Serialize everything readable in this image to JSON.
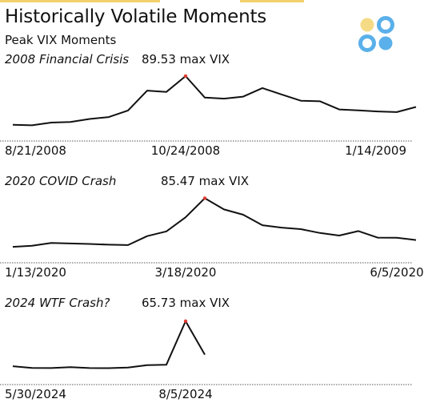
{
  "title": "Historically Volatile Moments",
  "subtitle": "Peak VIX Moments",
  "colors": {
    "line": "#111111",
    "peak": "#e03a2e",
    "axis": "#555555",
    "accent_yellow": "#f2d06b",
    "logo_blue": "#5ab0ea",
    "logo_yellow": "#f5db86"
  },
  "chart_data": [
    {
      "type": "line",
      "title": "2008 Financial Crisis",
      "peak_label": "89.53 max VIX",
      "peak_value": 89.53,
      "ticks": [
        "8/21/2008",
        "10/24/2008",
        "1/14/2009"
      ],
      "tick_positions": [
        0,
        9,
        21
      ],
      "values": [
        22.5,
        21.8,
        25.5,
        26.3,
        30.5,
        33.1,
        42.2,
        69.5,
        67.8,
        89.53,
        59.9,
        58.5,
        61.3,
        73.0,
        64.2,
        55.6,
        54.8,
        43.6,
        42.3,
        40.8,
        40.0,
        47.0
      ],
      "ylim": [
        20,
        95
      ]
    },
    {
      "type": "line",
      "title": "2020 COVID Crash",
      "peak_label": "85.47 max VIX",
      "peak_value": 85.47,
      "ticks": [
        "1/13/2020",
        "3/18/2020",
        "6/5/2020"
      ],
      "tick_positions": [
        0,
        9,
        20
      ],
      "values": [
        12.3,
        13.8,
        18.1,
        17.4,
        16.6,
        15.6,
        14.9,
        28.4,
        35.6,
        56.8,
        85.47,
        68.6,
        60.7,
        44.8,
        41.2,
        39.0,
        33.2,
        29.3,
        36.1,
        26.2,
        26.0,
        22.5
      ],
      "ylim": [
        10,
        92
      ]
    },
    {
      "type": "line",
      "title": "2024 WTF Crash?",
      "peak_label": "65.73 max VIX",
      "peak_value": 65.73,
      "ticks": [
        "5/30/2024",
        "8/5/2024"
      ],
      "tick_positions": [
        0,
        9
      ],
      "values": [
        14.5,
        12.5,
        12.4,
        13.5,
        12.4,
        12.3,
        12.9,
        15.7,
        16.2,
        65.73,
        27.7
      ],
      "ylim": [
        10,
        72
      ]
    }
  ]
}
